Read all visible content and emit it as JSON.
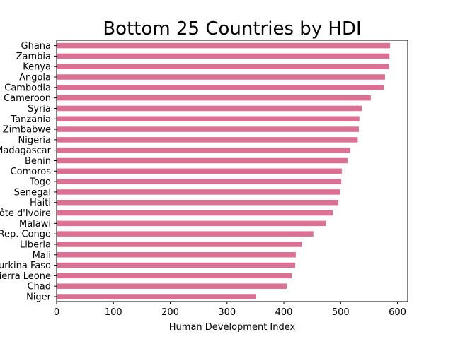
{
  "chart_data": {
    "type": "bar",
    "orientation": "horizontal",
    "title": "Bottom 25 Countries by HDI",
    "xlabel": "Human Development Index",
    "ylabel": "",
    "xlim": [
      0,
      618
    ],
    "xticks": [
      0,
      100,
      200,
      300,
      400,
      500,
      600
    ],
    "bar_color": "#db7093",
    "grid": false,
    "categories": [
      "Ghana",
      "Zambia",
      "Kenya",
      "Angola",
      "Cambodia",
      "Cameroon",
      "Syria",
      "Tanzania",
      "Zimbabwe",
      "Nigeria",
      "Madagascar",
      "Benin",
      "Comoros",
      "Togo",
      "Senegal",
      "Haiti",
      "Côte d'Ivoire",
      "Malawi",
      "Dem. Rep. Congo",
      "Liberia",
      "Mali",
      "Burkina Faso",
      "Sierra Leone",
      "Chad",
      "Niger"
    ],
    "values": [
      587,
      586,
      585,
      578,
      576,
      553,
      537,
      533,
      532,
      530,
      517,
      512,
      502,
      501,
      499,
      496,
      486,
      474,
      452,
      432,
      421,
      420,
      414,
      405,
      351
    ]
  }
}
